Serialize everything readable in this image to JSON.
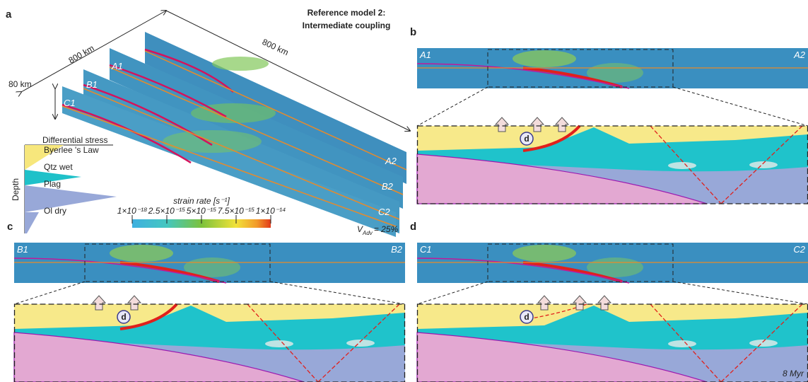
{
  "panel_a": {
    "letter": "a",
    "title_lines": [
      "Reference model 2:",
      "Intermediate coupling"
    ],
    "dimensions": [
      "800 km",
      "800 km",
      "80 km"
    ],
    "section_labels": [
      "A1",
      "B1",
      "C1",
      "A2",
      "B2",
      "C2"
    ],
    "stress_legend": {
      "title": "Differential stress",
      "layers": [
        "Byerlee 's Law",
        "Qtz wet",
        "Plag",
        "Ol dry"
      ],
      "axis_label": "Depth"
    },
    "colorbar": {
      "title": "strain rate [s⁻¹]",
      "tick_labels": [
        "1×10⁻¹⁸",
        "2.5×10⁻¹⁵",
        "5×10⁻¹⁵",
        "7.5×10⁻¹⁵",
        "1×10⁻¹⁴"
      ]
    },
    "velocity": {
      "symbol": "V",
      "subscript": "Adv",
      "text": "= 25%"
    }
  },
  "panel_b": {
    "letter": "b",
    "ends": [
      "A1",
      "A2"
    ],
    "marker": "d"
  },
  "panel_c": {
    "letter": "c",
    "ends": [
      "B1",
      "B2"
    ],
    "marker": "d"
  },
  "panel_d": {
    "letter": "d",
    "ends": [
      "C1",
      "C2"
    ],
    "marker": "d",
    "time": "8 Myr"
  }
}
